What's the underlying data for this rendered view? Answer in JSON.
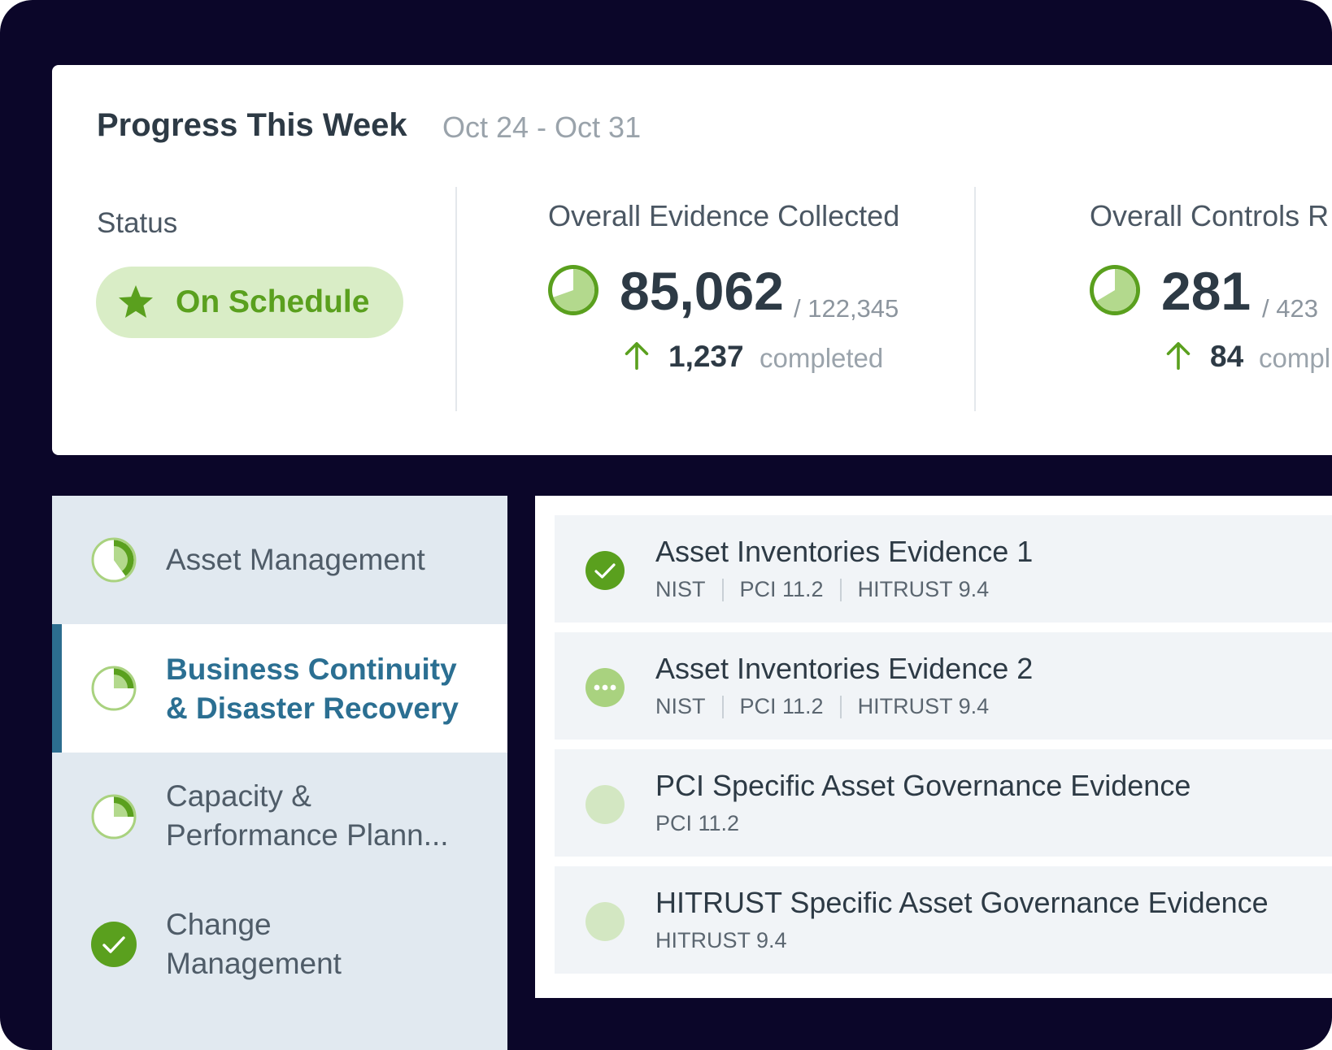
{
  "colors": {
    "background": "#0b0629",
    "accent_green": "#5aa01e",
    "light_green": "#d9edc6",
    "pale_green": "#cfe6b8",
    "active_blue": "#2b6f92",
    "sidebar_bg": "#e1e9f0"
  },
  "progress": {
    "title": "Progress This Week",
    "date_range": "Oct 24 - Oct 31",
    "status": {
      "label": "Status",
      "value": "On Schedule",
      "icon": "star-icon"
    },
    "metrics": [
      {
        "title": "Overall Evidence Collected",
        "value": "85,062",
        "total": "/ 122,345",
        "delta": "1,237",
        "delta_label": "completed",
        "icon": "progress-pie-icon",
        "progress_fraction": 0.695
      },
      {
        "title": "Overall Controls R",
        "value": "281",
        "total": "/ 423",
        "delta": "84",
        "delta_label": "compl",
        "icon": "progress-pie-icon",
        "progress_fraction": 0.664
      }
    ]
  },
  "sidebar": {
    "items": [
      {
        "label_lines": [
          "Asset Management"
        ],
        "icon": "progress-pie-icon",
        "progress_fraction": 0.4,
        "active": false
      },
      {
        "label_lines": [
          "Business Continuity",
          "& Disaster Recovery"
        ],
        "icon": "progress-pie-icon",
        "progress_fraction": 0.25,
        "active": true
      },
      {
        "label_lines": [
          "Capacity &",
          "Performance Plann..."
        ],
        "icon": "progress-pie-icon",
        "progress_fraction": 0.25,
        "active": false
      },
      {
        "label_lines": [
          "Change",
          "Management"
        ],
        "icon": "check-circle-icon",
        "progress_fraction": 1.0,
        "active": false
      }
    ]
  },
  "evidence": {
    "items": [
      {
        "title": "Asset Inventories Evidence 1",
        "tags": [
          "NIST",
          "PCI 11.2",
          "HITRUST 9.4"
        ],
        "status": "complete",
        "icon": "check-circle-icon"
      },
      {
        "title": "Asset Inventories Evidence 2",
        "tags": [
          "NIST",
          "PCI 11.2",
          "HITRUST 9.4"
        ],
        "status": "in-progress",
        "icon": "more-dots-icon"
      },
      {
        "title": "PCI Specific Asset Governance Evidence",
        "tags": [
          "PCI 11.2"
        ],
        "status": "not-started",
        "icon": "empty-circle-icon"
      },
      {
        "title": "HITRUST Specific Asset Governance Evidence",
        "tags": [
          "HITRUST 9.4"
        ],
        "status": "not-started",
        "icon": "empty-circle-icon"
      }
    ]
  }
}
